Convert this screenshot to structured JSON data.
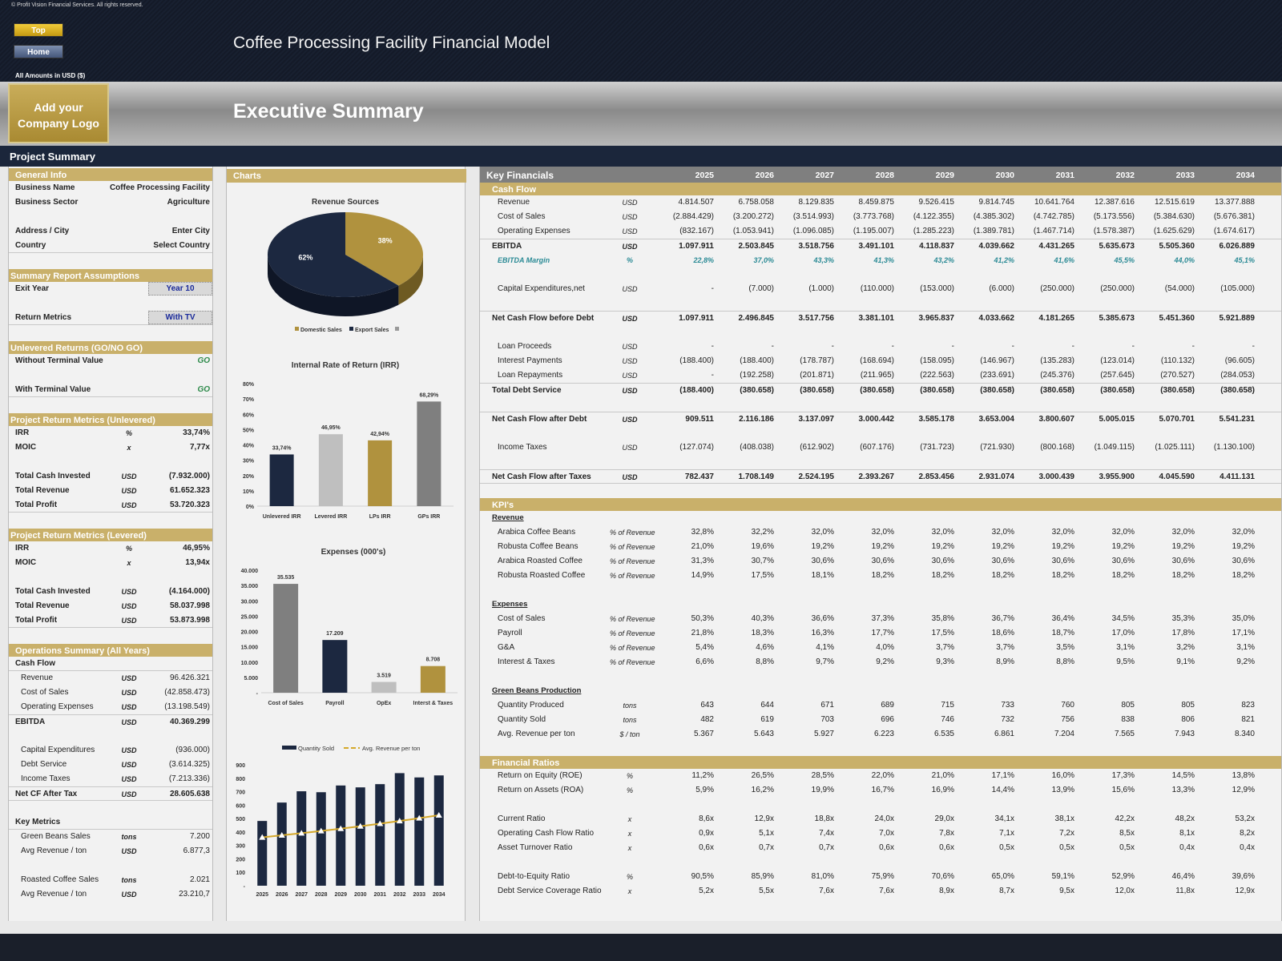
{
  "header": {
    "copyright": "© Profit Vision Financial Services. All rights reserved.",
    "top_button": "Top",
    "home_button": "Home",
    "app_title": "Coffee Processing Facility Financial Model",
    "amounts_label": "All Amounts in  USD ($)",
    "logo_text": "Add your Company Logo",
    "section_title": "Executive Summary",
    "bar_title": "Project Summary"
  },
  "colors": {
    "navy": "#1c2840",
    "gold": "#b0923e",
    "band": "#c9b06a",
    "gray": "#7f7f7f",
    "light_gray": "#bfbfbf",
    "margin_teal": "#2a8a95",
    "go_green": "#2d8a4a"
  },
  "left_panel": [
    {
      "kind": "band ind",
      "label": "General Info"
    },
    {
      "kind": "kv",
      "label": "Business Name",
      "value": "Coffee Processing Facility"
    },
    {
      "kind": "kv",
      "label": "Business Sector",
      "value": "Agriculture"
    },
    {
      "kind": "blank"
    },
    {
      "kind": "kv",
      "label": "Address / City",
      "value": "Enter City"
    },
    {
      "kind": "kv line",
      "label": "Country",
      "value": "Select Country"
    },
    {
      "kind": "blank"
    },
    {
      "kind": "band",
      "label": "Summary  Report Assumptions"
    },
    {
      "kind": "select",
      "label": "Exit Year",
      "value": "Year 10"
    },
    {
      "kind": "blank"
    },
    {
      "kind": "select line",
      "label": "Return Metrics",
      "value": "With TV"
    },
    {
      "kind": "blank"
    },
    {
      "kind": "band",
      "label": "Unlevered Returns (GO/NO GO)"
    },
    {
      "kind": "go",
      "label": "Without Terminal Value",
      "value": "GO"
    },
    {
      "kind": "blank"
    },
    {
      "kind": "go line",
      "label": "With Terminal Value",
      "value": "GO"
    },
    {
      "kind": "blank"
    },
    {
      "kind": "band",
      "label": "Project Return Metrics (Unlevered)"
    },
    {
      "kind": "kv",
      "label": "IRR",
      "unit": "%",
      "value": "33,74%"
    },
    {
      "kind": "kv",
      "label": "MOIC",
      "unit": "x",
      "value": "7,77x"
    },
    {
      "kind": "blank"
    },
    {
      "kind": "kv",
      "label": "Total Cash Invested",
      "unit": "USD",
      "value": "(7.932.000)"
    },
    {
      "kind": "kv",
      "label": "Total Revenue",
      "unit": "USD",
      "value": "61.652.323"
    },
    {
      "kind": "kv line",
      "label": "Total Profit",
      "unit": "USD",
      "value": "53.720.323"
    },
    {
      "kind": "blank"
    },
    {
      "kind": "band",
      "label": "Project Return Metrics (Levered)"
    },
    {
      "kind": "kv",
      "label": "IRR",
      "unit": "%",
      "value": "46,95%"
    },
    {
      "kind": "kv",
      "label": "MOIC",
      "unit": "x",
      "value": "13,94x"
    },
    {
      "kind": "blank"
    },
    {
      "kind": "kv",
      "label": "Total Cash Invested",
      "unit": "USD",
      "value": "(4.164.000)"
    },
    {
      "kind": "kv",
      "label": "Total Revenue",
      "unit": "USD",
      "value": "58.037.998"
    },
    {
      "kind": "kv line",
      "label": "Total Profit",
      "unit": "USD",
      "value": "53.873.998"
    },
    {
      "kind": "blank"
    },
    {
      "kind": "band ind",
      "label": "Operations Summary (All Years)"
    },
    {
      "kind": "kv line",
      "label": "Cash Flow"
    },
    {
      "kind": "sub",
      "label": "Revenue",
      "unit": "USD",
      "value": "96.426.321"
    },
    {
      "kind": "sub",
      "label": "Cost of Sales",
      "unit": "USD",
      "value": "(42.858.473)"
    },
    {
      "kind": "sub",
      "label": "Operating Expenses",
      "unit": "USD",
      "value": "(13.198.549)"
    },
    {
      "kind": "kv tot",
      "label": "EBITDA",
      "unit": "USD",
      "value": "40.369.299"
    },
    {
      "kind": "blank"
    },
    {
      "kind": "sub",
      "label": "Capital Expenditures",
      "unit": "USD",
      "value": "(936.000)"
    },
    {
      "kind": "sub",
      "label": "Debt Service",
      "unit": "USD",
      "value": "(3.614.325)"
    },
    {
      "kind": "sub",
      "label": "Income Taxes",
      "unit": "USD",
      "value": "(7.213.336)"
    },
    {
      "kind": "kv tot line",
      "label": "Net CF After Tax",
      "unit": "USD",
      "value": "28.605.638"
    },
    {
      "kind": "blank"
    },
    {
      "kind": "kv line",
      "label": "Key Metrics"
    },
    {
      "kind": "sub",
      "label": "Green Beans Sales",
      "unit": "tons",
      "value": "7.200"
    },
    {
      "kind": "sub",
      "label": "Avg Revenue / ton",
      "unit": "USD",
      "value": "6.877,3"
    },
    {
      "kind": "blank"
    },
    {
      "kind": "sub",
      "label": "Roasted Coffee Sales",
      "unit": "tons",
      "value": "2.021"
    },
    {
      "kind": "sub",
      "label": "Avg Revenue / ton",
      "unit": "USD",
      "value": "23.210,7"
    }
  ],
  "key_financials": {
    "title": "Key Financials",
    "years": [
      "2025",
      "2026",
      "2027",
      "2028",
      "2029",
      "2030",
      "2031",
      "2032",
      "2033",
      "2034"
    ],
    "rows": [
      {
        "kind": "band",
        "label": "Cash Flow"
      },
      {
        "kind": "row",
        "label": "Revenue",
        "unit": "USD",
        "values": [
          "4.814.507",
          "6.758.058",
          "8.129.835",
          "8.459.875",
          "9.526.415",
          "9.814.745",
          "10.641.764",
          "12.387.616",
          "12.515.619",
          "13.377.888"
        ]
      },
      {
        "kind": "row",
        "label": "Cost of Sales",
        "unit": "USD",
        "values": [
          "(2.884.429)",
          "(3.200.272)",
          "(3.514.993)",
          "(3.773.768)",
          "(4.122.355)",
          "(4.385.302)",
          "(4.742.785)",
          "(5.173.556)",
          "(5.384.630)",
          "(5.676.381)"
        ]
      },
      {
        "kind": "row",
        "label": "Operating Expenses",
        "unit": "USD",
        "values": [
          "(832.167)",
          "(1.053.941)",
          "(1.096.085)",
          "(1.195.007)",
          "(1.285.223)",
          "(1.389.781)",
          "(1.467.714)",
          "(1.578.387)",
          "(1.625.629)",
          "(1.674.617)"
        ]
      },
      {
        "kind": "tot",
        "label": "EBITDA",
        "unit": "USD",
        "values": [
          "1.097.911",
          "2.503.845",
          "3.518.756",
          "3.491.101",
          "4.118.837",
          "4.039.662",
          "4.431.265",
          "5.635.673",
          "5.505.360",
          "6.026.889"
        ]
      },
      {
        "kind": "mg",
        "label": "EBITDA Margin",
        "unit": "%",
        "values": [
          "22,8%",
          "37,0%",
          "43,3%",
          "41,3%",
          "43,2%",
          "41,2%",
          "41,6%",
          "45,5%",
          "44,0%",
          "45,1%"
        ]
      },
      {
        "kind": "blank"
      },
      {
        "kind": "row",
        "label": "Capital Expenditures,net",
        "unit": "USD",
        "values": [
          "-",
          "(7.000)",
          "(1.000)",
          "(110.000)",
          "(153.000)",
          "(6.000)",
          "(250.000)",
          "(250.000)",
          "(54.000)",
          "(105.000)"
        ]
      },
      {
        "kind": "blank"
      },
      {
        "kind": "tot",
        "label": "Net Cash Flow before Debt",
        "unit": "USD",
        "values": [
          "1.097.911",
          "2.496.845",
          "3.517.756",
          "3.381.101",
          "3.965.837",
          "4.033.662",
          "4.181.265",
          "5.385.673",
          "5.451.360",
          "5.921.889"
        ]
      },
      {
        "kind": "blank"
      },
      {
        "kind": "row",
        "label": "Loan Proceeds",
        "unit": "USD",
        "values": [
          "-",
          "-",
          "-",
          "-",
          "-",
          "-",
          "-",
          "-",
          "-",
          "-"
        ]
      },
      {
        "kind": "row",
        "label": "Interest Payments",
        "unit": "USD",
        "values": [
          "(188.400)",
          "(188.400)",
          "(178.787)",
          "(168.694)",
          "(158.095)",
          "(146.967)",
          "(135.283)",
          "(123.014)",
          "(110.132)",
          "(96.605)"
        ]
      },
      {
        "kind": "row",
        "label": "Loan Repayments",
        "unit": "USD",
        "values": [
          "-",
          "(192.258)",
          "(201.871)",
          "(211.965)",
          "(222.563)",
          "(233.691)",
          "(245.376)",
          "(257.645)",
          "(270.527)",
          "(284.053)"
        ]
      },
      {
        "kind": "tot",
        "label": "Total Debt Service",
        "unit": "USD",
        "values": [
          "(188.400)",
          "(380.658)",
          "(380.658)",
          "(380.658)",
          "(380.658)",
          "(380.658)",
          "(380.658)",
          "(380.658)",
          "(380.658)",
          "(380.658)"
        ]
      },
      {
        "kind": "blank"
      },
      {
        "kind": "tot",
        "label": "Net Cash Flow after Debt",
        "unit": "USD",
        "values": [
          "909.511",
          "2.116.186",
          "3.137.097",
          "3.000.442",
          "3.585.178",
          "3.653.004",
          "3.800.607",
          "5.005.015",
          "5.070.701",
          "5.541.231"
        ]
      },
      {
        "kind": "blank"
      },
      {
        "kind": "row",
        "label": "Income Taxes",
        "unit": "USD",
        "values": [
          "(127.074)",
          "(408.038)",
          "(612.902)",
          "(607.176)",
          "(731.723)",
          "(721.930)",
          "(800.168)",
          "(1.049.115)",
          "(1.025.111)",
          "(1.130.100)"
        ]
      },
      {
        "kind": "blank"
      },
      {
        "kind": "tot2",
        "label": "Net Cash Flow after Taxes",
        "unit": "USD",
        "values": [
          "782.437",
          "1.708.149",
          "2.524.195",
          "2.393.267",
          "2.853.456",
          "2.931.074",
          "3.000.439",
          "3.955.900",
          "4.045.590",
          "4.411.131"
        ]
      },
      {
        "kind": "blank"
      },
      {
        "kind": "band",
        "label": "KPI's"
      },
      {
        "kind": "sh",
        "label": "Revenue"
      },
      {
        "kind": "row",
        "label": "Arabica Coffee Beans",
        "unit": "% of Revenue",
        "values": [
          "32,8%",
          "32,2%",
          "32,0%",
          "32,0%",
          "32,0%",
          "32,0%",
          "32,0%",
          "32,0%",
          "32,0%",
          "32,0%"
        ]
      },
      {
        "kind": "row",
        "label": "Robusta Coffee Beans",
        "unit": "% of Revenue",
        "values": [
          "21,0%",
          "19,6%",
          "19,2%",
          "19,2%",
          "19,2%",
          "19,2%",
          "19,2%",
          "19,2%",
          "19,2%",
          "19,2%"
        ]
      },
      {
        "kind": "row",
        "label": "Arabica Roasted Coffee",
        "unit": "% of Revenue",
        "values": [
          "31,3%",
          "30,7%",
          "30,6%",
          "30,6%",
          "30,6%",
          "30,6%",
          "30,6%",
          "30,6%",
          "30,6%",
          "30,6%"
        ]
      },
      {
        "kind": "row",
        "label": "Robusta Roasted Coffee",
        "unit": "% of Revenue",
        "values": [
          "14,9%",
          "17,5%",
          "18,1%",
          "18,2%",
          "18,2%",
          "18,2%",
          "18,2%",
          "18,2%",
          "18,2%",
          "18,2%"
        ]
      },
      {
        "kind": "blank"
      },
      {
        "kind": "sh",
        "label": "Expenses"
      },
      {
        "kind": "row",
        "label": "Cost of Sales",
        "unit": "% of Revenue",
        "values": [
          "50,3%",
          "40,3%",
          "36,6%",
          "37,3%",
          "35,8%",
          "36,7%",
          "36,4%",
          "34,5%",
          "35,3%",
          "35,0%"
        ]
      },
      {
        "kind": "row",
        "label": "Payroll",
        "unit": "% of Revenue",
        "values": [
          "21,8%",
          "18,3%",
          "16,3%",
          "17,7%",
          "17,5%",
          "18,6%",
          "18,7%",
          "17,0%",
          "17,8%",
          "17,1%"
        ]
      },
      {
        "kind": "row",
        "label": "G&A",
        "unit": "% of Revenue",
        "values": [
          "5,4%",
          "4,6%",
          "4,1%",
          "4,0%",
          "3,7%",
          "3,7%",
          "3,5%",
          "3,1%",
          "3,2%",
          "3,1%"
        ]
      },
      {
        "kind": "row",
        "label": "Interest & Taxes",
        "unit": "% of Revenue",
        "values": [
          "6,6%",
          "8,8%",
          "9,7%",
          "9,2%",
          "9,3%",
          "8,9%",
          "8,8%",
          "9,5%",
          "9,1%",
          "9,2%"
        ]
      },
      {
        "kind": "blank"
      },
      {
        "kind": "sh",
        "label": "Green Beans Production"
      },
      {
        "kind": "row",
        "label": "Quantity Produced",
        "unit": "tons",
        "values": [
          "643",
          "644",
          "671",
          "689",
          "715",
          "733",
          "760",
          "805",
          "805",
          "823"
        ]
      },
      {
        "kind": "row",
        "label": "Quantity Sold",
        "unit": "tons",
        "values": [
          "482",
          "619",
          "703",
          "696",
          "746",
          "732",
          "756",
          "838",
          "806",
          "821"
        ]
      },
      {
        "kind": "row",
        "label": "Avg. Revenue per ton",
        "unit": "$ / ton",
        "values": [
          "5.367",
          "5.643",
          "5.927",
          "6.223",
          "6.535",
          "6.861",
          "7.204",
          "7.565",
          "7.943",
          "8.340"
        ]
      },
      {
        "kind": "blank"
      },
      {
        "kind": "band",
        "label": "Financial Ratios"
      },
      {
        "kind": "row",
        "label": "Return on Equity (ROE)",
        "unit": "%",
        "values": [
          "11,2%",
          "26,5%",
          "28,5%",
          "22,0%",
          "21,0%",
          "17,1%",
          "16,0%",
          "17,3%",
          "14,5%",
          "13,8%"
        ]
      },
      {
        "kind": "row",
        "label": "Return on Assets (ROA)",
        "unit": "%",
        "values": [
          "5,9%",
          "16,2%",
          "19,9%",
          "16,7%",
          "16,9%",
          "14,4%",
          "13,9%",
          "15,6%",
          "13,3%",
          "12,9%"
        ]
      },
      {
        "kind": "blank"
      },
      {
        "kind": "row",
        "label": "Current Ratio",
        "unit": "x",
        "values": [
          "8,6x",
          "12,9x",
          "18,8x",
          "24,0x",
          "29,0x",
          "34,1x",
          "38,1x",
          "42,2x",
          "48,2x",
          "53,2x"
        ]
      },
      {
        "kind": "row",
        "label": "Operating Cash Flow Ratio",
        "unit": "x",
        "values": [
          "0,9x",
          "5,1x",
          "7,4x",
          "7,0x",
          "7,8x",
          "7,1x",
          "7,2x",
          "8,5x",
          "8,1x",
          "8,2x"
        ]
      },
      {
        "kind": "row",
        "label": "Asset Turnover Ratio",
        "unit": "x",
        "values": [
          "0,6x",
          "0,7x",
          "0,7x",
          "0,6x",
          "0,6x",
          "0,5x",
          "0,5x",
          "0,5x",
          "0,4x",
          "0,4x"
        ]
      },
      {
        "kind": "blank"
      },
      {
        "kind": "row",
        "label": "Debt-to-Equity Ratio",
        "unit": "%",
        "values": [
          "90,5%",
          "85,9%",
          "81,0%",
          "75,9%",
          "70,6%",
          "65,0%",
          "59,1%",
          "52,9%",
          "46,4%",
          "39,6%"
        ]
      },
      {
        "kind": "row",
        "label": "Debt Service Coverage Ratio",
        "unit": "x",
        "values": [
          "5,2x",
          "5,5x",
          "7,6x",
          "7,6x",
          "8,9x",
          "8,7x",
          "9,5x",
          "12,0x",
          "11,8x",
          "12,9x"
        ]
      }
    ]
  },
  "charts_band": "Charts",
  "chart_data": [
    {
      "type": "pie",
      "title": "Revenue Sources",
      "categories": [
        "Domestic Sales",
        "Export Sales"
      ],
      "values": [
        38,
        62
      ],
      "labels": [
        "38%",
        "62%"
      ],
      "legend": "bottom"
    },
    {
      "type": "bar",
      "title": "Internal Rate of Return (IRR)",
      "categories": [
        "Unlevered IRR",
        "Levered IRR",
        "LPs IRR",
        "GPs IRR"
      ],
      "values": [
        33.74,
        46.95,
        42.94,
        68.29
      ],
      "data_labels": [
        "33,74%",
        "46,95%",
        "42,94%",
        "68,29%"
      ],
      "ylim": [
        0,
        80
      ],
      "yticks": [
        "0%",
        "10%",
        "20%",
        "30%",
        "40%",
        "50%",
        "60%",
        "70%",
        "80%"
      ]
    },
    {
      "type": "bar",
      "title": "Expenses (000's)",
      "categories": [
        "Cost of Sales",
        "Payroll",
        "OpEx",
        "Interst & Taxes"
      ],
      "values": [
        35535,
        17209,
        3519,
        8708
      ],
      "data_labels": [
        "35.535",
        "17.209",
        "3.519",
        "8.708"
      ],
      "ylim": [
        0,
        40000
      ],
      "yticks": [
        "-",
        "5.000",
        "10.000",
        "15.000",
        "20.000",
        "25.000",
        "30.000",
        "35.000",
        "40.000"
      ]
    },
    {
      "type": "bar+line",
      "categories": [
        "2025",
        "2026",
        "2027",
        "2028",
        "2029",
        "2030",
        "2031",
        "2032",
        "2033",
        "2034"
      ],
      "series": [
        {
          "name": "Quantity Sold",
          "type": "bar",
          "values": [
            482,
            619,
            703,
            696,
            746,
            732,
            756,
            838,
            806,
            821
          ]
        },
        {
          "name": "Avg. Revenue per ton",
          "type": "line",
          "values": [
            5367,
            5643,
            5927,
            6223,
            6535,
            6861,
            7204,
            7565,
            7943,
            8340
          ]
        }
      ],
      "ylim": [
        0,
        900
      ],
      "yticks": [
        "-",
        "100",
        "200",
        "300",
        "400",
        "500",
        "600",
        "700",
        "800",
        "900"
      ],
      "legend": "top"
    }
  ]
}
